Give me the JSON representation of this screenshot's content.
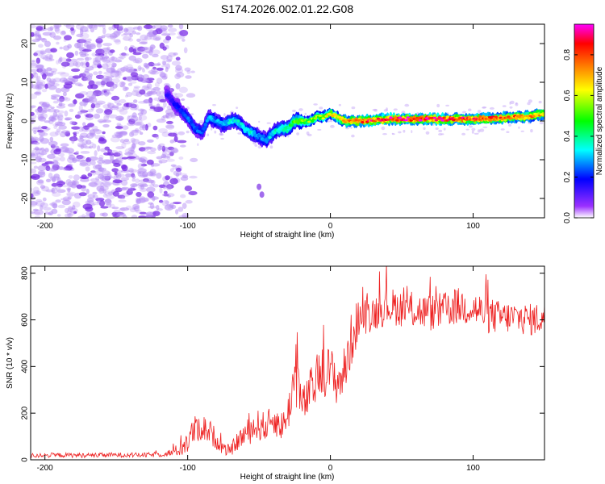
{
  "title": "S174.2026.002.01.22.G08",
  "colors": {
    "snr_line": "#ee2222",
    "ridge_core": "#ff2a2a",
    "background_speckle": "#a070f0",
    "axis": "#000000"
  },
  "chart_data": [
    {
      "id": "spectrogram",
      "type": "heatmap",
      "xlabel": "Height of straight line (km)",
      "ylabel": "Frequency (Hz)",
      "xlim": [
        -210,
        150
      ],
      "ylim": [
        -25,
        25
      ],
      "xticks": [
        -200,
        -100,
        0,
        100
      ],
      "xtick_labels": [
        "-200",
        "-100",
        "0",
        "100"
      ],
      "yticks": [
        -20,
        -10,
        0,
        10,
        20
      ],
      "ytick_labels": [
        "-20",
        "-10",
        "0",
        "10",
        "20"
      ],
      "colorbar": {
        "label": "Normalized spectral amplitude",
        "range": [
          0.0,
          0.95
        ],
        "ticks": [
          0.0,
          0.2,
          0.4,
          0.6,
          0.8
        ],
        "tick_labels": [
          "0.0",
          "0.2",
          "0.4",
          "0.6",
          "0.8"
        ],
        "colormap": [
          "#ffffff",
          "#9b30ff",
          "#0000ff",
          "#00ffff",
          "#00ff00",
          "#ffff00",
          "#ff8000",
          "#ff0000",
          "#ff00ff"
        ]
      },
      "ridge": {
        "x": [
          -115,
          -108,
          -100,
          -95,
          -90,
          -85,
          -80,
          -75,
          -70,
          -65,
          -60,
          -55,
          -50,
          -45,
          -40,
          -35,
          -30,
          -25,
          -20,
          -15,
          -10,
          -5,
          0,
          5,
          10,
          20,
          40,
          60,
          80,
          100,
          120,
          140,
          150
        ],
        "y": [
          7,
          4,
          1,
          -2,
          -3,
          1,
          0,
          -1,
          0,
          0,
          -2,
          -3,
          -4,
          -5,
          -3,
          -2,
          -2,
          0,
          0,
          0,
          1,
          1,
          2,
          1,
          0,
          0,
          0.5,
          0.5,
          0.5,
          0.5,
          0.8,
          1.2,
          2.0
        ],
        "amplitude": [
          0.15,
          0.2,
          0.25,
          0.25,
          0.25,
          0.3,
          0.3,
          0.3,
          0.35,
          0.35,
          0.35,
          0.35,
          0.3,
          0.3,
          0.35,
          0.4,
          0.45,
          0.5,
          0.55,
          0.55,
          0.6,
          0.6,
          0.65,
          0.7,
          0.75,
          0.85,
          0.9,
          0.9,
          0.9,
          0.85,
          0.8,
          0.75,
          0.7
        ]
      },
      "noise_region_x": [
        -210,
        -100
      ],
      "outlier_blobs": [
        {
          "x": -50,
          "y": -17
        },
        {
          "x": -48,
          "y": -19
        }
      ]
    },
    {
      "id": "snr",
      "type": "line",
      "xlabel": "Height of straight line (km)",
      "ylabel": "SNR (10 * v/v)",
      "xlim": [
        -210,
        150
      ],
      "ylim": [
        0,
        830
      ],
      "xticks": [
        -200,
        -100,
        0,
        100
      ],
      "xtick_labels": [
        "-200",
        "-100",
        "0",
        "100"
      ],
      "yticks": [
        0,
        200,
        400,
        600,
        800
      ],
      "ytick_labels": [
        "0",
        "200",
        "400",
        "600",
        "800"
      ],
      "series": [
        {
          "name": "SNR",
          "x": [
            -210,
            -190,
            -170,
            -150,
            -130,
            -115,
            -105,
            -100,
            -95,
            -90,
            -85,
            -80,
            -75,
            -70,
            -65,
            -60,
            -55,
            -50,
            -45,
            -40,
            -35,
            -30,
            -27,
            -25,
            -22,
            -20,
            -15,
            -10,
            -5,
            0,
            5,
            10,
            15,
            20,
            25,
            30,
            40,
            50,
            60,
            70,
            80,
            90,
            100,
            110,
            120,
            130,
            140,
            150
          ],
          "values": [
            18,
            20,
            19,
            21,
            20,
            25,
            45,
            80,
            130,
            140,
            120,
            90,
            45,
            40,
            80,
            110,
            130,
            150,
            140,
            180,
            140,
            180,
            310,
            340,
            330,
            220,
            280,
            340,
            380,
            380,
            330,
            380,
            520,
            610,
            620,
            630,
            660,
            650,
            640,
            630,
            640,
            660,
            650,
            620,
            610,
            610,
            600,
            610
          ],
          "noise": [
            10,
            10,
            10,
            10,
            10,
            12,
            30,
            60,
            60,
            60,
            55,
            45,
            25,
            25,
            40,
            55,
            60,
            70,
            60,
            70,
            60,
            70,
            120,
            120,
            110,
            80,
            100,
            110,
            110,
            110,
            100,
            110,
            120,
            90,
            80,
            80,
            80,
            80,
            80,
            80,
            80,
            80,
            80,
            80,
            70,
            70,
            70,
            70
          ]
        }
      ]
    }
  ]
}
